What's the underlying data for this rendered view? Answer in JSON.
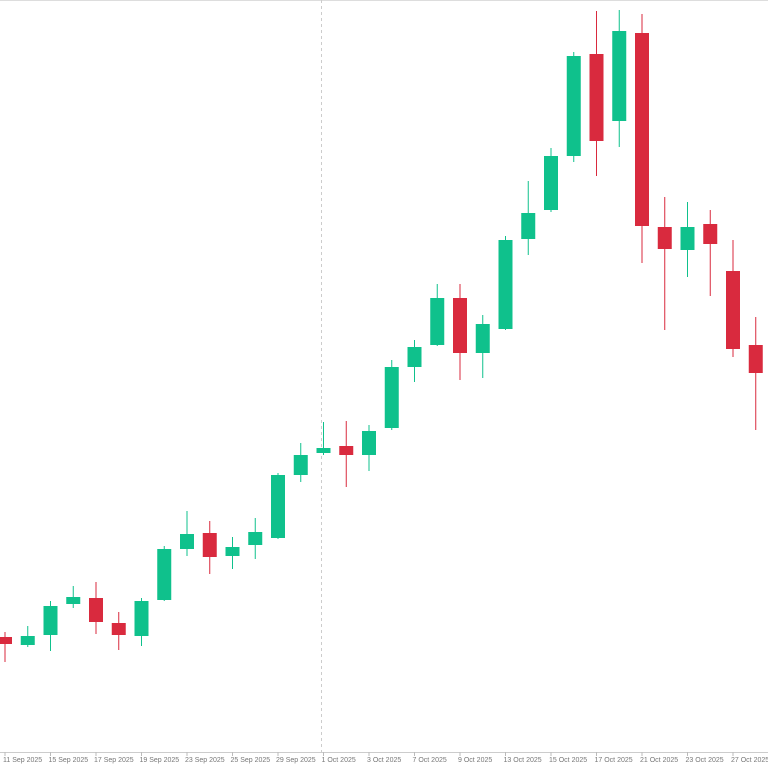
{
  "chart_data": {
    "type": "candlestick",
    "categories": [
      "11 Sep 2025",
      null,
      "15 Sep 2025",
      null,
      "17 Sep 2025",
      null,
      "19 Sep 2025",
      null,
      "23 Sep 2025",
      null,
      "25 Sep 2025",
      null,
      "29 Sep 2025",
      null,
      "1 Oct 2025",
      null,
      "3 Oct 2025",
      null,
      "7 Oct 2025",
      null,
      "9 Oct 2025",
      null,
      "13 Oct 2025",
      null,
      "15 Oct 2025",
      null,
      "17 Oct 2025",
      null,
      "21 Oct 2025",
      null,
      "23 Oct 2025",
      null,
      "27 Oct 2025",
      null
    ],
    "open": [
      115,
      107,
      117,
      148,
      154,
      129,
      116,
      152,
      203,
      219,
      196,
      207,
      214,
      277,
      299,
      306,
      297,
      324,
      385,
      407,
      454,
      399,
      423,
      513,
      542,
      596,
      698,
      631,
      719,
      525,
      502,
      528,
      481,
      407
    ],
    "high": [
      120,
      126,
      151,
      166,
      170,
      140,
      154,
      206,
      241,
      231,
      215,
      234,
      279,
      309,
      330,
      331,
      327,
      392,
      412,
      468,
      468,
      437,
      516,
      571,
      604,
      700,
      741,
      742,
      738,
      555,
      550,
      542,
      512,
      435
    ],
    "low": [
      90,
      105,
      101,
      144,
      118,
      102,
      106,
      151,
      196,
      178,
      183,
      193,
      213,
      270,
      297,
      265,
      281,
      322,
      370,
      406,
      372,
      374,
      422,
      497,
      540,
      590,
      576,
      605,
      489,
      422,
      475,
      456,
      395,
      322
    ],
    "close": [
      108,
      116,
      146,
      155,
      130,
      117,
      151,
      203,
      218,
      195,
      205,
      220,
      277,
      297,
      304,
      297,
      321,
      385,
      405,
      454,
      399,
      428,
      512,
      539,
      596,
      696,
      611,
      721,
      526,
      503,
      525,
      508,
      403,
      379
    ],
    "up_color": "#0fc18c",
    "down_color": "#d92a3e",
    "ylim": [
      0,
      752
    ]
  }
}
